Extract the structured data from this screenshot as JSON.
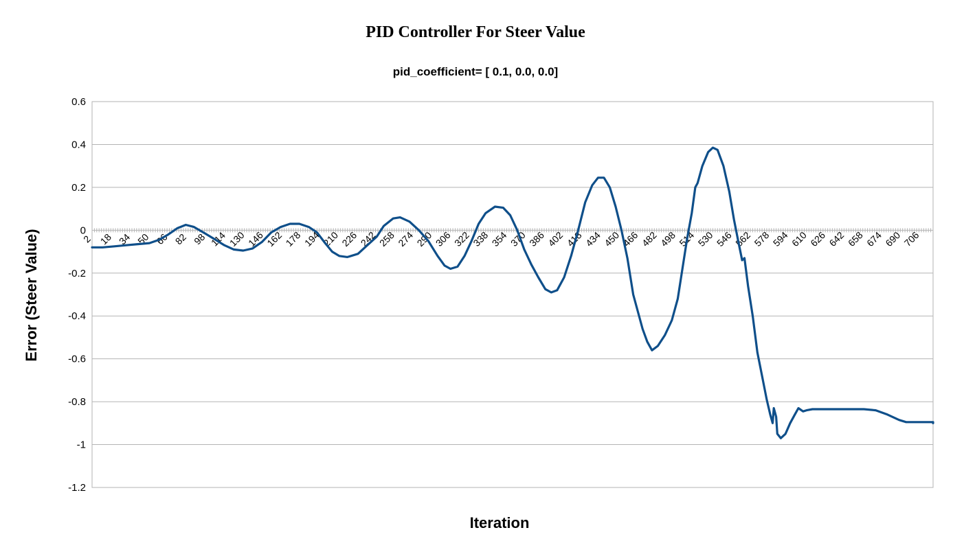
{
  "chart_data": {
    "type": "line",
    "title": "PID Controller For Steer Value",
    "subtitle": "pid_coefficient= [ 0.1, 0.0, 0.0]",
    "xlabel": "Iteration",
    "ylabel": "Error (Steer Value)",
    "xlim": [
      1,
      719
    ],
    "ylim": [
      -1.2,
      0.6
    ],
    "y_ticks": [
      0.6,
      0.4,
      0.2,
      0,
      -0.2,
      -0.4,
      -0.6,
      -0.8,
      -1,
      -1.2
    ],
    "x_tick_labels": [
      "2",
      "18",
      "34",
      "50",
      "66",
      "82",
      "98",
      "114",
      "130",
      "146",
      "162",
      "178",
      "194",
      "210",
      "226",
      "242",
      "258",
      "274",
      "290",
      "306",
      "322",
      "338",
      "354",
      "370",
      "386",
      "402",
      "418",
      "434",
      "450",
      "466",
      "482",
      "498",
      "514",
      "530",
      "546",
      "562",
      "578",
      "594",
      "610",
      "626",
      "642",
      "658",
      "674",
      "690",
      "706"
    ],
    "grid": "horizontal",
    "legend": "none",
    "colors": {
      "series": "#0f4f8a",
      "grid": "#b3b3b3"
    },
    "series": [
      {
        "points": [
          [
            1,
            -0.08
          ],
          [
            10,
            -0.08
          ],
          [
            20,
            -0.075
          ],
          [
            30,
            -0.07
          ],
          [
            40,
            -0.065
          ],
          [
            50,
            -0.06
          ],
          [
            58,
            -0.045
          ],
          [
            66,
            -0.02
          ],
          [
            74,
            0.01
          ],
          [
            81,
            0.025
          ],
          [
            88,
            0.015
          ],
          [
            96,
            -0.01
          ],
          [
            105,
            -0.04
          ],
          [
            114,
            -0.07
          ],
          [
            122,
            -0.09
          ],
          [
            130,
            -0.095
          ],
          [
            138,
            -0.085
          ],
          [
            146,
            -0.055
          ],
          [
            154,
            -0.01
          ],
          [
            162,
            0.015
          ],
          [
            170,
            0.03
          ],
          [
            178,
            0.03
          ],
          [
            186,
            0.015
          ],
          [
            193,
            -0.01
          ],
          [
            200,
            -0.06
          ],
          [
            206,
            -0.1
          ],
          [
            212,
            -0.12
          ],
          [
            219,
            -0.125
          ],
          [
            228,
            -0.11
          ],
          [
            236,
            -0.07
          ],
          [
            244,
            -0.03
          ],
          [
            250,
            0.02
          ],
          [
            258,
            0.055
          ],
          [
            264,
            0.06
          ],
          [
            272,
            0.04
          ],
          [
            280,
            0.0
          ],
          [
            288,
            -0.05
          ],
          [
            296,
            -0.12
          ],
          [
            302,
            -0.165
          ],
          [
            307,
            -0.18
          ],
          [
            313,
            -0.17
          ],
          [
            319,
            -0.12
          ],
          [
            325,
            -0.05
          ],
          [
            331,
            0.03
          ],
          [
            337,
            0.08
          ],
          [
            345,
            0.11
          ],
          [
            352,
            0.105
          ],
          [
            358,
            0.07
          ],
          [
            364,
            0.0
          ],
          [
            370,
            -0.09
          ],
          [
            376,
            -0.16
          ],
          [
            382,
            -0.22
          ],
          [
            388,
            -0.275
          ],
          [
            393,
            -0.29
          ],
          [
            398,
            -0.28
          ],
          [
            404,
            -0.22
          ],
          [
            410,
            -0.12
          ],
          [
            416,
            0.0
          ],
          [
            422,
            0.13
          ],
          [
            428,
            0.21
          ],
          [
            433,
            0.245
          ],
          [
            438,
            0.245
          ],
          [
            443,
            0.2
          ],
          [
            448,
            0.11
          ],
          [
            453,
            0.0
          ],
          [
            458,
            -0.13
          ],
          [
            463,
            -0.3
          ],
          [
            467,
            -0.38
          ],
          [
            471,
            -0.46
          ],
          [
            475,
            -0.52
          ],
          [
            479,
            -0.56
          ],
          [
            484,
            -0.54
          ],
          [
            490,
            -0.49
          ],
          [
            496,
            -0.42
          ],
          [
            501,
            -0.32
          ],
          [
            505,
            -0.18
          ],
          [
            509,
            -0.04
          ],
          [
            513,
            0.08
          ],
          [
            516,
            0.2
          ],
          [
            518,
            0.22
          ],
          [
            522,
            0.3
          ],
          [
            527,
            0.365
          ],
          [
            531,
            0.385
          ],
          [
            535,
            0.375
          ],
          [
            540,
            0.3
          ],
          [
            545,
            0.18
          ],
          [
            549,
            0.05
          ],
          [
            553,
            -0.06
          ],
          [
            556,
            -0.14
          ],
          [
            558,
            -0.13
          ],
          [
            561,
            -0.26
          ],
          [
            565,
            -0.4
          ],
          [
            569,
            -0.57
          ],
          [
            573,
            -0.68
          ],
          [
            577,
            -0.79
          ],
          [
            580,
            -0.86
          ],
          [
            582,
            -0.9
          ],
          [
            583,
            -0.83
          ],
          [
            585,
            -0.87
          ],
          [
            586,
            -0.95
          ],
          [
            589,
            -0.97
          ],
          [
            593,
            -0.95
          ],
          [
            597,
            -0.9
          ],
          [
            601,
            -0.86
          ],
          [
            604,
            -0.83
          ],
          [
            608,
            -0.845
          ],
          [
            611,
            -0.84
          ],
          [
            616,
            -0.835
          ],
          [
            625,
            -0.835
          ],
          [
            640,
            -0.835
          ],
          [
            660,
            -0.835
          ],
          [
            670,
            -0.84
          ],
          [
            680,
            -0.86
          ],
          [
            690,
            -0.885
          ],
          [
            696,
            -0.895
          ],
          [
            710,
            -0.895
          ],
          [
            720,
            -0.895
          ],
          [
            735,
            -0.9
          ],
          [
            750,
            -0.9
          ]
        ]
      }
    ]
  }
}
